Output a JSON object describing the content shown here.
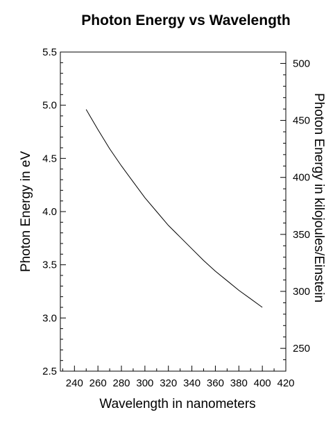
{
  "chart_data": {
    "type": "line",
    "title": "Photon Energy vs Wavelength",
    "xlabel": "Wavelength in nanometers",
    "ylabel": "Photon Energy in eV",
    "y2label": "Photon Energy in kilojoules/Einstein",
    "xlim": [
      228,
      420
    ],
    "ylim": [
      2.5,
      5.5
    ],
    "y2lim": [
      230,
      510
    ],
    "x_ticks": [
      240,
      260,
      280,
      300,
      320,
      340,
      360,
      380,
      400,
      420
    ],
    "y_ticks": [
      "2.5",
      "3.0",
      "3.5",
      "4.0",
      "4.5",
      "5.0",
      "5.5"
    ],
    "y2_ticks": [
      250,
      300,
      350,
      400,
      450,
      500
    ],
    "grid": false,
    "series": [
      {
        "color": "#000000",
        "x": [
          250,
          260,
          270,
          280,
          290,
          300,
          310,
          320,
          330,
          340,
          350,
          360,
          370,
          380,
          390,
          400
        ],
        "y": [
          4.96,
          4.77,
          4.59,
          4.43,
          4.28,
          4.13,
          4.0,
          3.87,
          3.76,
          3.65,
          3.54,
          3.44,
          3.35,
          3.26,
          3.18,
          3.1
        ]
      }
    ]
  }
}
